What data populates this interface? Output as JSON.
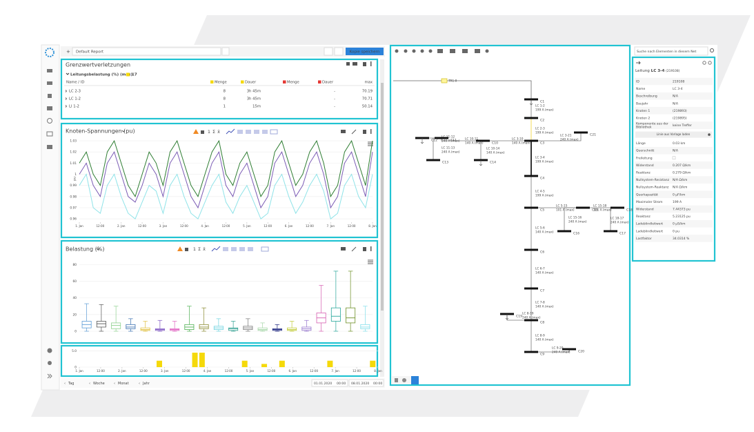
{
  "toolbar": {
    "report": "Default Report",
    "save": "Kopie speichern",
    "search": "Suche nach Elementen in diesem Net"
  },
  "limits": {
    "title": "Grenzwertverletzungen",
    "group": "Leitungsbelastung (%) (max)",
    "group_count": 17,
    "columns": [
      "Name / ID",
      "Menge",
      "Dauer",
      "Menge",
      "Dauer",
      "max"
    ],
    "rows": [
      [
        "LC 2-3",
        8,
        "3h 45m",
        "-",
        70.19
      ],
      [
        "LC 1-2",
        8,
        "3h 45m",
        "-",
        70.71
      ],
      [
        "LI 1-2",
        1,
        "15m",
        "-",
        50.14
      ]
    ]
  },
  "chart_tools": [
    "1",
    "Σ",
    "x̄"
  ],
  "chart_data": [
    {
      "type": "line",
      "title": "Knoten-Spannungen (pu)",
      "ylabel": "pu",
      "xlim": [
        0,
        168
      ],
      "xticks": [
        {
          "value": 0,
          "label": "1. Jan"
        },
        {
          "value": 12,
          "label": "12:00"
        },
        {
          "value": 24,
          "label": "2. Jan"
        },
        {
          "value": 36,
          "label": "12:00"
        },
        {
          "value": 48,
          "label": "3. Jan"
        },
        {
          "value": 60,
          "label": "12:00"
        },
        {
          "value": 72,
          "label": "4. Jan"
        },
        {
          "value": 84,
          "label": "12:00"
        },
        {
          "value": 96,
          "label": "5. Jan"
        },
        {
          "value": 108,
          "label": "12:00"
        },
        {
          "value": 120,
          "label": "6. Jan"
        },
        {
          "value": 132,
          "label": "12:00"
        },
        {
          "value": 144,
          "label": "7. Jan"
        },
        {
          "value": 156,
          "label": "12:00"
        },
        {
          "value": 168,
          "label": "8. Jan"
        }
      ],
      "ylim": [
        0.957,
        1.035
      ],
      "yticks": [
        0.96,
        0.97,
        0.98,
        0.99,
        1,
        1.01,
        1.02,
        1.03
      ],
      "x": [
        0,
        4,
        8,
        12,
        16,
        20,
        24,
        28,
        32,
        36,
        40,
        44,
        48,
        52,
        56,
        60,
        64,
        68,
        72,
        76,
        80,
        84,
        88,
        92,
        96,
        100,
        104,
        108,
        112,
        116,
        120,
        124,
        128,
        132,
        136,
        140,
        144,
        148,
        152,
        156,
        160,
        164,
        168
      ],
      "series": [
        {
          "color": "#8fe3e8",
          "values": [
            0.99,
            1.0,
            0.97,
            0.965,
            0.99,
            1.0,
            0.98,
            0.965,
            0.96,
            0.975,
            0.99,
            0.985,
            0.965,
            0.99,
            1.0,
            0.98,
            0.965,
            0.96,
            0.975,
            0.99,
            1.0,
            0.975,
            0.965,
            0.98,
            0.99,
            0.975,
            0.96,
            0.965,
            0.99,
            1.0,
            0.98,
            0.965,
            0.975,
            0.99,
            1.0,
            0.985,
            0.96,
            0.965,
            0.99,
            1.0,
            0.98,
            0.97,
            1.0
          ]
        },
        {
          "color": "#7b5bb5",
          "values": [
            1.0,
            1.01,
            0.99,
            0.98,
            1.01,
            1.02,
            1.0,
            0.98,
            0.975,
            0.99,
            1.01,
            1.0,
            0.98,
            1.01,
            1.02,
            1.0,
            0.98,
            0.97,
            0.99,
            1.01,
            1.02,
            0.99,
            0.98,
            1.0,
            1.01,
            0.99,
            0.97,
            0.98,
            1.01,
            1.02,
            1.0,
            0.98,
            0.99,
            1.01,
            1.02,
            1.0,
            0.97,
            0.98,
            1.01,
            1.02,
            1.0,
            0.98,
            1.02
          ]
        },
        {
          "color": "#2e7d32",
          "values": [
            1.01,
            1.02,
            1.0,
            0.99,
            1.02,
            1.03,
            1.01,
            0.99,
            0.98,
            1.0,
            1.02,
            1.01,
            0.99,
            1.02,
            1.03,
            1.01,
            0.99,
            0.98,
            1.0,
            1.02,
            1.03,
            1.0,
            0.99,
            1.01,
            1.02,
            1.0,
            0.98,
            0.99,
            1.02,
            1.03,
            1.01,
            0.99,
            1.0,
            1.02,
            1.03,
            1.01,
            0.98,
            0.99,
            1.02,
            1.03,
            1.01,
            0.99,
            1.03
          ]
        }
      ]
    },
    {
      "type": "box",
      "title": "Belastung (%)",
      "ylim": [
        0,
        86
      ],
      "yticks": [
        0,
        20,
        40,
        60,
        80
      ],
      "boxes": [
        {
          "color": "#5b9bd5",
          "min": 0,
          "q1": 4,
          "median": 8,
          "q3": 12,
          "max": 33
        },
        {
          "color": "#555555",
          "min": 0,
          "q1": 5,
          "median": 9,
          "q3": 12,
          "max": 32
        },
        {
          "color": "#8fd18f",
          "min": 0,
          "q1": 3,
          "median": 7,
          "q3": 10,
          "max": 30
        },
        {
          "color": "#3a6fb0",
          "min": 0,
          "q1": 3,
          "median": 5,
          "q3": 8,
          "max": 15
        },
        {
          "color": "#e0c040",
          "min": 0,
          "q1": 1,
          "median": 2,
          "q3": 4,
          "max": 12
        },
        {
          "color": "#7e57c2",
          "min": 0,
          "q1": 1,
          "median": 2,
          "q3": 3,
          "max": 13
        },
        {
          "color": "#e060c0",
          "min": 0,
          "q1": 1,
          "median": 2,
          "q3": 3,
          "max": 12
        },
        {
          "color": "#4caf50",
          "min": 0,
          "q1": 2,
          "median": 5,
          "q3": 8,
          "max": 30
        },
        {
          "color": "#8a8a2e",
          "min": 0,
          "q1": 3,
          "median": 5,
          "q3": 8,
          "max": 28
        },
        {
          "color": "#6fd3e0",
          "min": 0,
          "q1": 2,
          "median": 4,
          "q3": 6,
          "max": 15
        },
        {
          "color": "#2a9d8f",
          "min": 0,
          "q1": 1,
          "median": 3,
          "q3": 4,
          "max": 12
        },
        {
          "color": "#777777",
          "min": 0,
          "q1": 2,
          "median": 4,
          "q3": 6,
          "max": 15
        },
        {
          "color": "#a5d6a7",
          "min": 0,
          "q1": 1,
          "median": 2,
          "q3": 4,
          "max": 10
        },
        {
          "color": "#1a237e",
          "min": 0,
          "q1": 1,
          "median": 2,
          "q3": 3,
          "max": 8
        },
        {
          "color": "#c0ca33",
          "min": 0,
          "q1": 1,
          "median": 2,
          "q3": 4,
          "max": 12
        },
        {
          "color": "#9575cd",
          "min": 0,
          "q1": 1,
          "median": 3,
          "q3": 5,
          "max": 13
        },
        {
          "color": "#d65db1",
          "min": 0,
          "q1": 10,
          "median": 16,
          "q3": 22,
          "max": 55
        },
        {
          "color": "#26a69a",
          "min": 0,
          "q1": 12,
          "median": 18,
          "q3": 28,
          "max": 72
        },
        {
          "color": "#6b8e23",
          "min": 0,
          "q1": 10,
          "median": 16,
          "q3": 28,
          "max": 72
        },
        {
          "color": "#80deea",
          "min": 0,
          "q1": 3,
          "median": 5,
          "q3": 8,
          "max": 30
        }
      ]
    },
    {
      "type": "bar",
      "color": "#f5d90a",
      "xlim": [
        0,
        168
      ],
      "xticks": [
        {
          "value": 0,
          "label": "1. Jan"
        },
        {
          "value": 12,
          "label": "12:00"
        },
        {
          "value": 24,
          "label": "2. Jan"
        },
        {
          "value": 36,
          "label": "12:00"
        },
        {
          "value": 48,
          "label": "3. Jan"
        },
        {
          "value": 60,
          "label": "12:00"
        },
        {
          "value": 72,
          "label": "4. Jan"
        },
        {
          "value": 84,
          "label": "12:00"
        },
        {
          "value": 96,
          "label": "5. Jan"
        },
        {
          "value": 108,
          "label": "12:00"
        },
        {
          "value": 120,
          "label": "6. Jan"
        },
        {
          "value": 132,
          "label": "12:00"
        },
        {
          "value": 144,
          "label": "7. Jan"
        },
        {
          "value": 156,
          "label": "12:00"
        },
        {
          "value": 168,
          "label": "8. Jan"
        }
      ],
      "ylim": [
        0,
        5.8
      ],
      "yticks": [
        0,
        {
          "value": 5,
          "label": "5.0"
        }
      ],
      "x": [
        45,
        65,
        69,
        93,
        104,
        114,
        141,
        165
      ],
      "values": [
        2,
        4.5,
        4.5,
        2,
        1,
        2,
        2,
        2
      ]
    }
  ],
  "timebar": {
    "steps": [
      "Tag",
      "Woche",
      "Monat",
      "Jahr"
    ],
    "from_date": "01.01.2020",
    "from_time": "00:00",
    "to_date": "08.01.2020",
    "to_time": "00:00"
  },
  "network": {
    "transformer": "TR1-0",
    "nodes": [
      "C1",
      "C2",
      "C3",
      "C4",
      "C5",
      "C6",
      "C7",
      "C8",
      "C9",
      "C10",
      "C11",
      "C12",
      "C13",
      "C14",
      "C15",
      "C16",
      "C17",
      "C18",
      "C19",
      "C20",
      "C21"
    ],
    "lines": [
      {
        "label": "LC 1-2",
        "rating": "199 A (max)"
      },
      {
        "label": "LC 2-3",
        "rating": "199 A (max)"
      },
      {
        "label": "LC 3-4",
        "rating": "199 A (max)"
      },
      {
        "label": "LC 4-5",
        "rating": "199 A (max)"
      },
      {
        "label": "LC 5-6",
        "rating": "140 A (max)"
      },
      {
        "label": "LC 6-7",
        "rating": "140 A (max)"
      },
      {
        "label": "LC 7-8",
        "rating": "140 A (max)"
      },
      {
        "label": "LC 8-9",
        "rating": "140 A (max)"
      },
      {
        "label": "LC 3-10",
        "rating": "140 A (max)"
      },
      {
        "label": "LC 10-11",
        "rating": "140 A (max)"
      },
      {
        "label": "LC 11-12",
        "rating": "240 A (max)"
      },
      {
        "label": "LC 11-13",
        "rating": "240 A (max)"
      },
      {
        "label": "LC 10-14",
        "rating": "140 A (max)"
      },
      {
        "label": "LC 3-21",
        "rating": "240 A (max)"
      },
      {
        "label": "LC 5-15",
        "rating": "101 A (max)"
      },
      {
        "label": "LC 15-16",
        "rating": "240 A (max)"
      },
      {
        "label": "LC 15-18",
        "rating": "101 A (max)"
      },
      {
        "label": "LC 18-17",
        "rating": "240 A (max)"
      },
      {
        "label": "LC 8-19",
        "rating": "240 A (max)"
      },
      {
        "label": "LC 9-20",
        "rating": "240 A (max)"
      }
    ]
  },
  "properties": {
    "title": [
      "Leitung",
      "LC 3-4",
      "(219108)"
    ],
    "button": "Linie aus Vorlage laden",
    "rows": [
      {
        "label": "ID",
        "value": "219108"
      },
      {
        "label": "Name",
        "value": "LC 3-4"
      },
      {
        "label": "Beschreibung",
        "value": "N/A"
      },
      {
        "label": "Baujahr",
        "value": "N/A"
      },
      {
        "label": "Knoten 1",
        "value": "(219893)"
      },
      {
        "label": "Knoten 2",
        "value": "(219895)"
      },
      {
        "label": "Komponente aus der",
        "label2": "Bibliothek",
        "value": "keine Treffer"
      },
      {
        "label": "Länge",
        "value": "0.03 km"
      },
      {
        "label": "Querschnitt",
        "value": "N/A"
      },
      {
        "label": "Freileitung"
      },
      {
        "label": "Widerstand",
        "value": "0.207 Ω/km"
      },
      {
        "label": "Reaktanz",
        "value": "0.279 Ω/km"
      },
      {
        "label": "Nullsystem-Resistanz",
        "value": "N/A Ω/km"
      },
      {
        "label": "Nullsystem-Reaktanz",
        "value": "N/A Ω/km"
      },
      {
        "label": "Querkapazität",
        "value": "0 µF/km"
      },
      {
        "label": "Maximaler Strom",
        "value": "199 A"
      },
      {
        "label": "Widerstand",
        "value": "7.44373 pu"
      },
      {
        "label": "Reaktanz",
        "value": "5.23125 pu"
      },
      {
        "label": "Ladeblindleitwert",
        "value": "0 µS/km"
      },
      {
        "label": "Ladeblindleitwert",
        "value": "0 pu"
      },
      {
        "label": "Lastfaktor",
        "value": "34.0314 %"
      }
    ]
  }
}
